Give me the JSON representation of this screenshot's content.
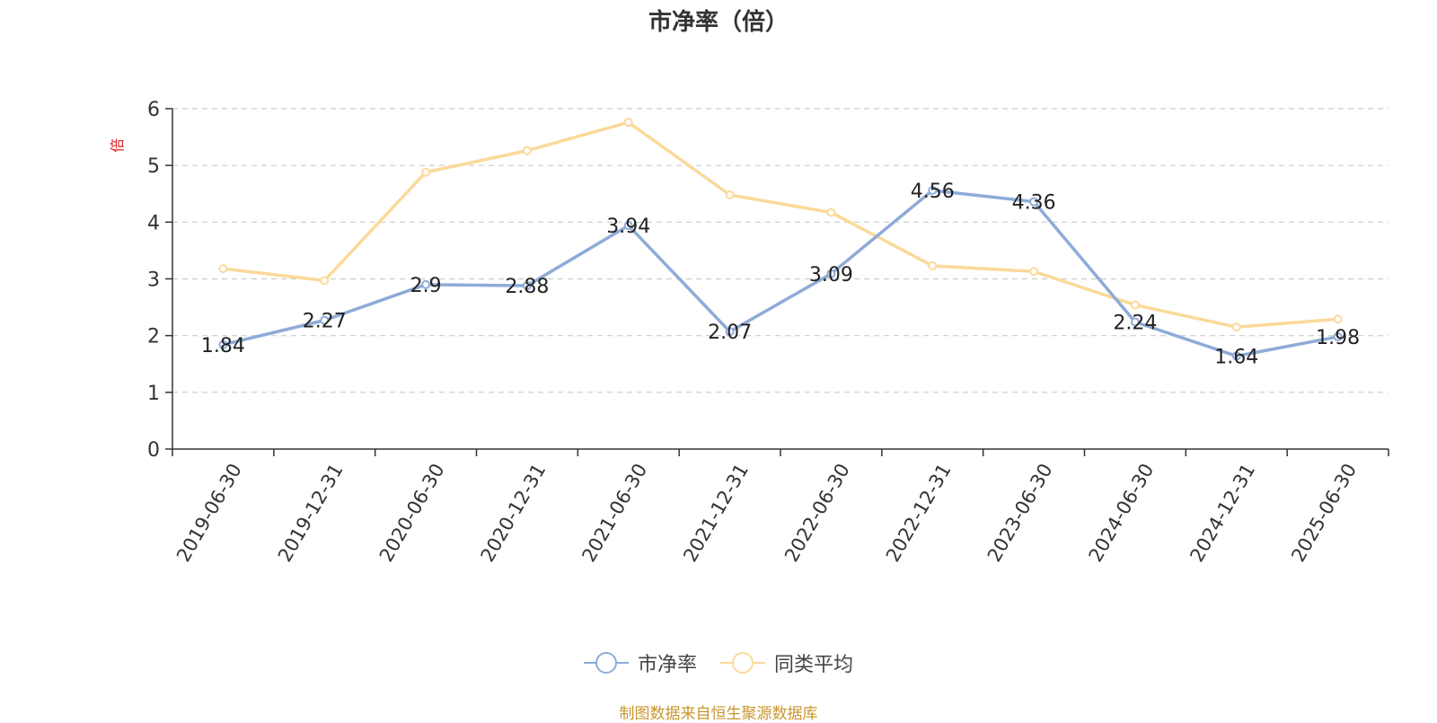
{
  "chart_data": {
    "type": "line",
    "title": "市净率（倍）",
    "ylabel": "倍",
    "xlabel": "",
    "categories": [
      "2019-06-30",
      "2019-12-31",
      "2020-06-30",
      "2020-12-31",
      "2021-06-30",
      "2021-12-31",
      "2022-06-30",
      "2022-12-31",
      "2023-06-30",
      "2024-06-30",
      "2024-12-31",
      "2025-06-30"
    ],
    "ylim": [
      0,
      6
    ],
    "yticks": [
      "0",
      "1",
      "2",
      "3",
      "4",
      "5",
      "6"
    ],
    "grid": true,
    "legend_position": "bottom-center",
    "series": [
      {
        "name": "市净率",
        "color": "#8eabd8",
        "show_labels": true,
        "values": [
          1.84,
          2.27,
          2.9,
          2.88,
          3.94,
          2.07,
          3.09,
          4.56,
          4.36,
          2.24,
          1.64,
          1.98
        ],
        "labels": [
          "1.84",
          "2.27",
          "2.9",
          "2.88",
          "3.94",
          "2.07",
          "3.09",
          "4.56",
          "4.36",
          "2.24",
          "1.64",
          "1.98"
        ]
      },
      {
        "name": "同类平均",
        "color": "#fbd99a",
        "show_labels": false,
        "values": [
          3.18,
          2.97,
          4.88,
          5.26,
          5.76,
          4.48,
          4.17,
          3.23,
          3.13,
          2.54,
          2.15,
          2.29
        ]
      }
    ]
  },
  "source": "制图数据来自恒生聚源数据库"
}
